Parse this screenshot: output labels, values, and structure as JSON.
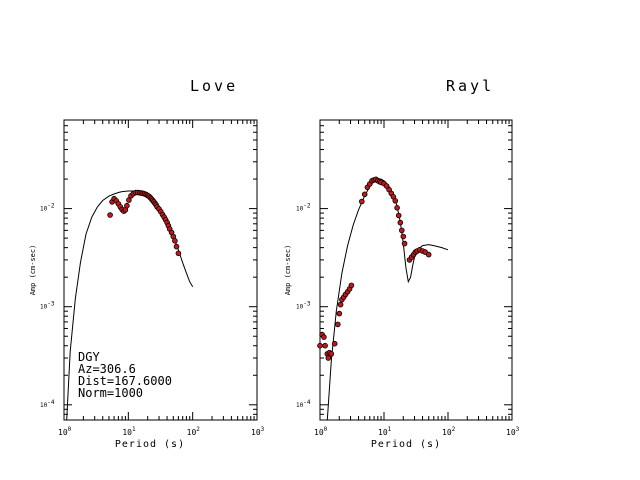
{
  "chart_data": [
    {
      "type": "scatter",
      "title": "Love",
      "xlabel": "Period (s)",
      "ylabel": "Amp (cm-sec)",
      "x_scale": "log",
      "y_scale": "log",
      "xlim": [
        1,
        1000
      ],
      "ylim": [
        7e-05,
        0.08
      ],
      "x_ticks": [
        {
          "base": "10",
          "exp": "0"
        },
        {
          "base": "10",
          "exp": "1"
        },
        {
          "base": "10",
          "exp": "2"
        },
        {
          "base": "10",
          "exp": "3"
        }
      ],
      "y_ticks": [
        {
          "base": "10",
          "exp": "-4"
        },
        {
          "base": "10",
          "exp": "-3"
        },
        {
          "base": "10",
          "exp": "-2"
        }
      ],
      "info_lines": [
        "DGY",
        "Az=306.6",
        "Dist=167.6000",
        "Norm=1000"
      ],
      "series": [
        {
          "kind": "line",
          "points": [
            [
              1.1,
              7e-05
            ],
            [
              1.25,
              0.00035
            ],
            [
              1.5,
              0.0012
            ],
            [
              1.8,
              0.0028
            ],
            [
              2.2,
              0.0055
            ],
            [
              2.7,
              0.0082
            ],
            [
              3.3,
              0.0104
            ],
            [
              4.0,
              0.0121
            ],
            [
              5.0,
              0.0134
            ],
            [
              6.0,
              0.0141
            ],
            [
              7.0,
              0.0146
            ],
            [
              8.0,
              0.0149
            ],
            [
              10,
              0.0151
            ],
            [
              12,
              0.0151
            ],
            [
              15,
              0.0147
            ],
            [
              20,
              0.0133
            ],
            [
              25,
              0.0115
            ],
            [
              30,
              0.0097
            ],
            [
              35,
              0.0083
            ],
            [
              40,
              0.0071
            ],
            [
              50,
              0.0052
            ],
            [
              60,
              0.0038
            ],
            [
              70,
              0.0028
            ],
            [
              80,
              0.0022
            ],
            [
              90,
              0.0018
            ],
            [
              100,
              0.0016
            ]
          ]
        },
        {
          "kind": "scatter",
          "points": [
            [
              5.2,
              0.0086
            ],
            [
              5.6,
              0.0117
            ],
            [
              6.0,
              0.0126
            ],
            [
              6.5,
              0.012
            ],
            [
              7.0,
              0.0112
            ],
            [
              7.5,
              0.0104
            ],
            [
              8.0,
              0.0098
            ],
            [
              8.5,
              0.0094
            ],
            [
              9.0,
              0.0097
            ],
            [
              9.5,
              0.0107
            ],
            [
              10.2,
              0.0122
            ],
            [
              11,
              0.0135
            ],
            [
              12,
              0.0142
            ],
            [
              13,
              0.0146
            ],
            [
              14,
              0.0146
            ],
            [
              15,
              0.0145
            ],
            [
              16,
              0.0144
            ],
            [
              17,
              0.0143
            ],
            [
              18,
              0.0141
            ],
            [
              19,
              0.0139
            ],
            [
              20,
              0.0136
            ],
            [
              21,
              0.0133
            ],
            [
              22,
              0.0129
            ],
            [
              23,
              0.0125
            ],
            [
              24,
              0.0121
            ],
            [
              25,
              0.0117
            ],
            [
              26,
              0.0113
            ],
            [
              27,
              0.0109
            ],
            [
              28,
              0.0104
            ],
            [
              30,
              0.0099
            ],
            [
              32,
              0.0093
            ],
            [
              34,
              0.0087
            ],
            [
              36,
              0.0082
            ],
            [
              38,
              0.0077
            ],
            [
              40,
              0.0072
            ],
            [
              42,
              0.0067
            ],
            [
              44,
              0.0062
            ],
            [
              47,
              0.0057
            ],
            [
              50,
              0.0052
            ],
            [
              53,
              0.0047
            ],
            [
              56,
              0.0041
            ],
            [
              60,
              0.0035
            ]
          ]
        }
      ]
    },
    {
      "type": "scatter",
      "title": "Rayl",
      "xlabel": "Period (s)",
      "ylabel": "Amp (cm-sec)",
      "x_scale": "log",
      "y_scale": "log",
      "xlim": [
        1,
        1000
      ],
      "ylim": [
        7e-05,
        0.08
      ],
      "x_ticks": [
        {
          "base": "10",
          "exp": "0"
        },
        {
          "base": "10",
          "exp": "1"
        },
        {
          "base": "10",
          "exp": "2"
        },
        {
          "base": "10",
          "exp": "3"
        }
      ],
      "y_ticks": [
        {
          "base": "10",
          "exp": "-4"
        },
        {
          "base": "10",
          "exp": "-3"
        },
        {
          "base": "10",
          "exp": "-2"
        }
      ],
      "series": [
        {
          "kind": "line",
          "points": [
            [
              1.3,
              7e-05
            ],
            [
              1.5,
              0.00028
            ],
            [
              1.8,
              0.0009
            ],
            [
              2.2,
              0.0022
            ],
            [
              2.7,
              0.0042
            ],
            [
              3.3,
              0.0068
            ],
            [
              4.0,
              0.0097
            ],
            [
              5.0,
              0.0135
            ],
            [
              6.0,
              0.0168
            ],
            [
              7.0,
              0.0192
            ],
            [
              8.0,
              0.0202
            ],
            [
              9.0,
              0.02
            ],
            [
              10,
              0.0192
            ],
            [
              12,
              0.0168
            ],
            [
              14,
              0.0138
            ],
            [
              16,
              0.0106
            ],
            [
              18,
              0.0073
            ],
            [
              20,
              0.0044
            ],
            [
              22,
              0.0025
            ],
            [
              24,
              0.0018
            ],
            [
              26,
              0.002
            ],
            [
              28,
              0.0026
            ],
            [
              30,
              0.0032
            ],
            [
              35,
              0.0039
            ],
            [
              40,
              0.0042
            ],
            [
              50,
              0.0043
            ],
            [
              60,
              0.0042
            ],
            [
              80,
              0.004
            ],
            [
              100,
              0.0038
            ]
          ]
        },
        {
          "kind": "scatter",
          "points": [
            [
              1.0,
              0.0004
            ],
            [
              1.08,
              0.00052
            ],
            [
              1.15,
              0.00049
            ],
            [
              1.2,
              0.0004
            ],
            [
              1.3,
              0.00033
            ],
            [
              1.35,
              0.0003
            ],
            [
              1.4,
              0.00034
            ],
            [
              1.5,
              0.00033
            ],
            [
              1.7,
              0.00042
            ],
            [
              1.9,
              0.00066
            ],
            [
              2.0,
              0.00085
            ],
            [
              2.1,
              0.00105
            ],
            [
              2.2,
              0.00118
            ],
            [
              2.35,
              0.00125
            ],
            [
              2.5,
              0.00133
            ],
            [
              2.7,
              0.00142
            ],
            [
              2.9,
              0.00152
            ],
            [
              3.1,
              0.00165
            ],
            [
              4.5,
              0.0118
            ],
            [
              5.0,
              0.014
            ],
            [
              5.5,
              0.0165
            ],
            [
              6.0,
              0.0178
            ],
            [
              6.5,
              0.0192
            ],
            [
              7.0,
              0.0196
            ],
            [
              7.5,
              0.0199
            ],
            [
              8.0,
              0.0193
            ],
            [
              8.5,
              0.0188
            ],
            [
              9.0,
              0.0185
            ],
            [
              10,
              0.018
            ],
            [
              11,
              0.017
            ],
            [
              12,
              0.0156
            ],
            [
              13,
              0.0143
            ],
            [
              14,
              0.0132
            ],
            [
              15,
              0.012
            ],
            [
              16,
              0.0102
            ],
            [
              17,
              0.0085
            ],
            [
              18,
              0.0072
            ],
            [
              19,
              0.006
            ],
            [
              20,
              0.0052
            ],
            [
              21,
              0.0044
            ],
            [
              25,
              0.003
            ],
            [
              27,
              0.0032
            ],
            [
              29,
              0.0034
            ],
            [
              31,
              0.0036
            ],
            [
              33,
              0.0037
            ],
            [
              36,
              0.0038
            ],
            [
              40,
              0.0037
            ],
            [
              44,
              0.0036
            ],
            [
              50,
              0.0034
            ]
          ]
        }
      ]
    }
  ]
}
